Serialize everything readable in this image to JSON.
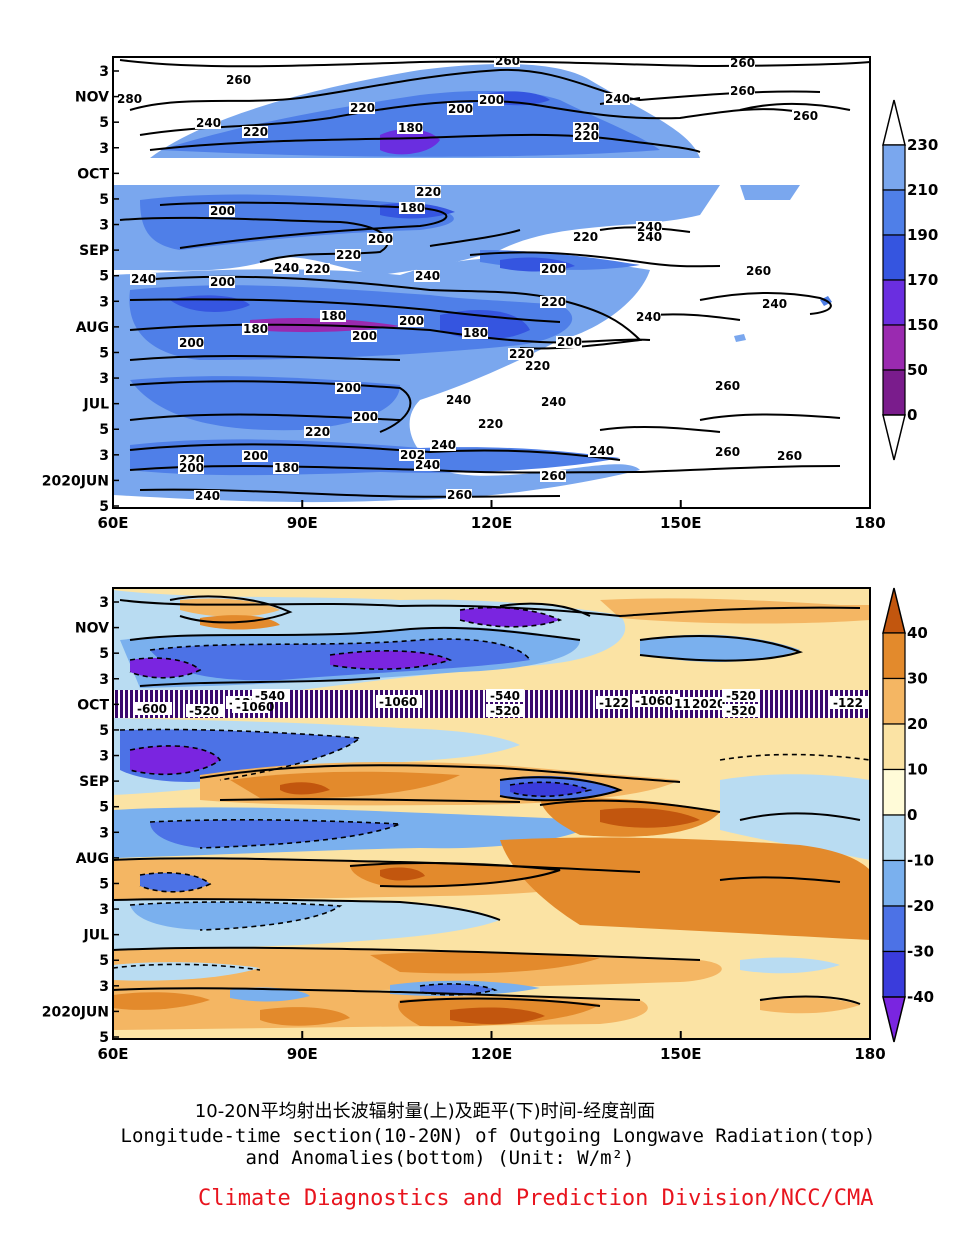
{
  "chart_data": [
    {
      "type": "heatmap",
      "title": "",
      "panel": "top",
      "x_tick_labels": [
        "60E",
        "90E",
        "120E",
        "150E",
        "180"
      ],
      "x_values": [
        60,
        90,
        120,
        150,
        180
      ],
      "y_tick_labels": [
        "3",
        "NOV",
        "5",
        "3",
        "OCT",
        "5",
        "3",
        "SEP",
        "5",
        "3",
        "AUG",
        "5",
        "3",
        "JUL",
        "5",
        "3",
        "2020JUN",
        "5"
      ],
      "colorbar_levels": [
        "230",
        "210",
        "190",
        "170",
        "150",
        "50",
        "0"
      ],
      "colorbar_colors": [
        "#7aa7ee",
        "#4f7fe8",
        "#3555e0",
        "#6a2ee0",
        "#9a2ab0",
        "#7a1c8c",
        "#5a0a5a"
      ],
      "contour_labels": [
        "260",
        "260",
        "260",
        "280",
        "260",
        "240",
        "220",
        "200",
        "200",
        "180",
        "220",
        "220",
        "220",
        "200",
        "180",
        "220",
        "240",
        "200",
        "220",
        "240",
        "220",
        "240",
        "200",
        "220",
        "240",
        "260",
        "240",
        "200",
        "180",
        "200",
        "180",
        "200",
        "220",
        "200",
        "240",
        "240",
        "200",
        "200",
        "240",
        "200",
        "220",
        "220",
        "220",
        "240",
        "220",
        "200",
        "180",
        "202",
        "240",
        "240",
        "260",
        "260",
        "260",
        "240",
        "260",
        "260",
        "220",
        "240",
        "240",
        "200",
        "180",
        "260"
      ],
      "missing_band": "OCT"
    },
    {
      "type": "heatmap",
      "title": "",
      "panel": "bottom",
      "x_tick_labels": [
        "60E",
        "90E",
        "120E",
        "150E",
        "180"
      ],
      "x_values": [
        60,
        90,
        120,
        150,
        180
      ],
      "y_tick_labels": [
        "3",
        "NOV",
        "5",
        "3",
        "OCT",
        "5",
        "3",
        "SEP",
        "5",
        "3",
        "AUG",
        "5",
        "3",
        "JUL",
        "5",
        "3",
        "2020JUN",
        "5"
      ],
      "colorbar_levels": [
        "40",
        "30",
        "20",
        "10",
        "0",
        "-10",
        "-20",
        "-30",
        "-40"
      ],
      "colorbar_colors": [
        "#c2560e",
        "#e38a2c",
        "#f4b663",
        "#fbe3a4",
        "#fffbd8",
        "#b9dcf2",
        "#7ab0ee",
        "#4c72e6",
        "#3a3cdc",
        "#7a25e0"
      ],
      "contour_labels": [
        "-600",
        "-520",
        "-122",
        "-1060",
        "-540",
        "-1060",
        "-540",
        "-520",
        "-122",
        "-1060",
        "1120",
        "2020",
        "-520",
        "-520",
        "-122"
      ]
    }
  ],
  "caption": {
    "chinese": "10-20N平均射出长波辐射量(上)及距平(下)时间-经度剖面",
    "english_line1": "Longitude-time section(10-20N) of Outgoing Longwave Radiation(top)",
    "english_line2": "and Anomalies(bottom) (Unit: W/m²)"
  },
  "credit": "Climate Diagnostics and Prediction Division/NCC/CMA"
}
